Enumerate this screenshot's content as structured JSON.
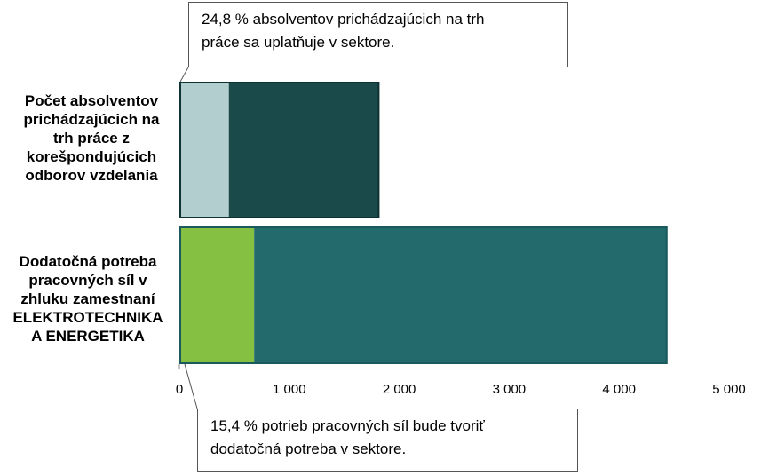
{
  "chart_data": {
    "type": "bar",
    "orientation": "horizontal",
    "stacked": true,
    "categories": [
      "Počet absolventov prichádzajúcich na trh práce z korešpondujúcich odborov vzdelania",
      "Dodatočná potreba pracovných síl v zhluku zamestnaní ELEKTROTECHNIKA A ENERGETIKA"
    ],
    "bars": [
      {
        "segments": [
          {
            "value": 450,
            "color": "#b3cece"
          },
          {
            "value": 1370,
            "color": "#1b4a4a"
          }
        ]
      },
      {
        "segments": [
          {
            "value": 680,
            "color": "#86c043"
          },
          {
            "value": 3760,
            "color": "#226a6c"
          }
        ]
      }
    ],
    "xlim": [
      0,
      5000
    ],
    "xticks": [
      0,
      1000,
      2000,
      3000,
      4000,
      5000
    ],
    "xtick_labels": [
      "0",
      "1 000",
      "2 000",
      "3 000",
      "4 000",
      "5 000"
    ],
    "grid": false,
    "annotations": [
      "24,8 % absolventov prichádzajúcich na trh práce sa uplatňuje v sektore.",
      "15,4 % potrieb pracovných síl bude tvoriť dodatočná potreba v sektore."
    ]
  },
  "labels": {
    "cat1_lines": [
      "Počet absolventov",
      "prichádzajúcich na",
      "trh práce z",
      "korešpondujúcich",
      "odborov vzdelania"
    ],
    "cat2_lines": [
      "Dodatočná potreba",
      "pracovných síl v",
      "zhluku zamestnaní",
      "ELEKTROTECHNIKA",
      "A ENERGETIKA"
    ],
    "callout1_lines": [
      "24,8 % absolventov prichádzajúcich na trh",
      "práce sa uplatňuje v sektore."
    ],
    "callout2_lines": [
      "15,4 % potrieb pracovných síl bude tvoriť",
      "dodatočná potreba v sektore."
    ]
  }
}
